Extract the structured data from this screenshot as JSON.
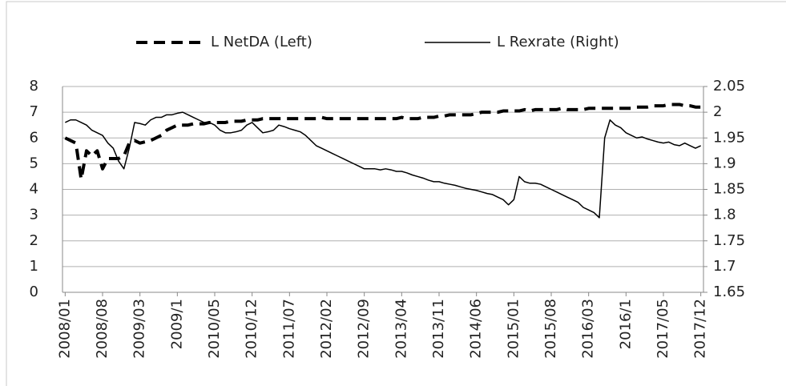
{
  "chart_data": {
    "type": "line",
    "categories": [
      "2008/01",
      null,
      null,
      null,
      null,
      null,
      null,
      "2008/08",
      null,
      null,
      null,
      null,
      null,
      null,
      "2009/03",
      null,
      null,
      null,
      null,
      null,
      null,
      "2009/1",
      null,
      null,
      null,
      null,
      null,
      null,
      "2010/05",
      null,
      null,
      null,
      null,
      null,
      null,
      "2010/12",
      null,
      null,
      null,
      null,
      null,
      null,
      "2011/07",
      null,
      null,
      null,
      null,
      null,
      null,
      "2012/02",
      null,
      null,
      null,
      null,
      null,
      null,
      "2012/09",
      null,
      null,
      null,
      null,
      null,
      null,
      "2013/04",
      null,
      null,
      null,
      null,
      null,
      null,
      "2013/11",
      null,
      null,
      null,
      null,
      null,
      null,
      "2014/06",
      null,
      null,
      null,
      null,
      null,
      null,
      "2015/01",
      null,
      null,
      null,
      null,
      null,
      null,
      "2015/08",
      null,
      null,
      null,
      null,
      null,
      null,
      "2016/03",
      null,
      null,
      null,
      null,
      null,
      null,
      "2016/1",
      null,
      null,
      null,
      null,
      null,
      null,
      "2017/05",
      null,
      null,
      null,
      null,
      null,
      null,
      "2017/12"
    ],
    "series": [
      {
        "name": "L NetDA (Left)",
        "color": "#000000",
        "dashed": true,
        "axis": "y",
        "values": [
          6.0,
          5.9,
          5.8,
          4.4,
          5.5,
          5.3,
          5.5,
          4.8,
          5.2,
          5.2,
          5.2,
          5.3,
          5.8,
          5.9,
          5.8,
          5.85,
          5.9,
          6.0,
          6.1,
          6.3,
          6.4,
          6.5,
          6.5,
          6.5,
          6.55,
          6.55,
          6.55,
          6.6,
          6.6,
          6.6,
          6.6,
          6.65,
          6.65,
          6.65,
          6.7,
          6.7,
          6.7,
          6.75,
          6.75,
          6.75,
          6.75,
          6.75,
          6.75,
          6.75,
          6.75,
          6.75,
          6.75,
          6.75,
          6.8,
          6.75,
          6.75,
          6.75,
          6.75,
          6.75,
          6.75,
          6.75,
          6.75,
          6.75,
          6.75,
          6.75,
          6.75,
          6.75,
          6.75,
          6.8,
          6.75,
          6.75,
          6.75,
          6.8,
          6.8,
          6.8,
          6.85,
          6.85,
          6.9,
          6.9,
          6.9,
          6.9,
          6.9,
          6.95,
          7.0,
          7.0,
          7.0,
          7.0,
          7.05,
          7.05,
          7.05,
          7.05,
          7.1,
          7.05,
          7.1,
          7.1,
          7.1,
          7.1,
          7.1,
          7.15,
          7.1,
          7.1,
          7.1,
          7.1,
          7.15,
          7.15,
          7.15,
          7.15,
          7.15,
          7.15,
          7.15,
          7.15,
          7.15,
          7.2,
          7.2,
          7.2,
          7.25,
          7.25,
          7.25,
          7.3,
          7.3,
          7.3,
          7.25,
          7.25,
          7.2,
          7.2
        ]
      },
      {
        "name": "L Rexrate (Right)",
        "color": "#000000",
        "dashed": false,
        "axis": "y2",
        "values": [
          1.98,
          1.985,
          1.985,
          1.98,
          1.975,
          1.965,
          1.96,
          1.955,
          1.94,
          1.93,
          1.905,
          1.89,
          1.93,
          1.98,
          1.978,
          1.975,
          1.985,
          1.99,
          1.99,
          1.995,
          1.995,
          1.998,
          2.0,
          1.995,
          1.99,
          1.985,
          1.98,
          1.98,
          1.975,
          1.965,
          1.96,
          1.96,
          1.962,
          1.965,
          1.975,
          1.98,
          1.97,
          1.96,
          1.962,
          1.965,
          1.975,
          1.972,
          1.968,
          1.965,
          1.962,
          1.955,
          1.945,
          1.935,
          1.93,
          1.925,
          1.92,
          1.915,
          1.91,
          1.905,
          1.9,
          1.895,
          1.89,
          1.89,
          1.89,
          1.888,
          1.89,
          1.888,
          1.885,
          1.885,
          1.882,
          1.878,
          1.875,
          1.872,
          1.868,
          1.865,
          1.865,
          1.862,
          1.86,
          1.858,
          1.855,
          1.852,
          1.85,
          1.848,
          1.845,
          1.842,
          1.84,
          1.835,
          1.83,
          1.82,
          1.83,
          1.875,
          1.865,
          1.862,
          1.862,
          1.86,
          1.855,
          1.85,
          1.845,
          1.84,
          1.835,
          1.83,
          1.825,
          1.815,
          1.81,
          1.805,
          1.795,
          1.95,
          1.985,
          1.975,
          1.97,
          1.96,
          1.955,
          1.95,
          1.952,
          1.948,
          1.945,
          1.942,
          1.94,
          1.942,
          1.937,
          1.935,
          1.94,
          1.935,
          1.93,
          1.935
        ]
      }
    ],
    "ylim": [
      0,
      8
    ],
    "yticks": [
      0,
      1,
      2,
      3,
      4,
      5,
      6,
      7,
      8
    ],
    "y2lim": [
      1.65,
      2.05
    ],
    "y2ticks": [
      1.65,
      1.7,
      1.75,
      1.8,
      1.85,
      1.9,
      1.95,
      2,
      2.05
    ],
    "grid": true,
    "legend": "top"
  }
}
